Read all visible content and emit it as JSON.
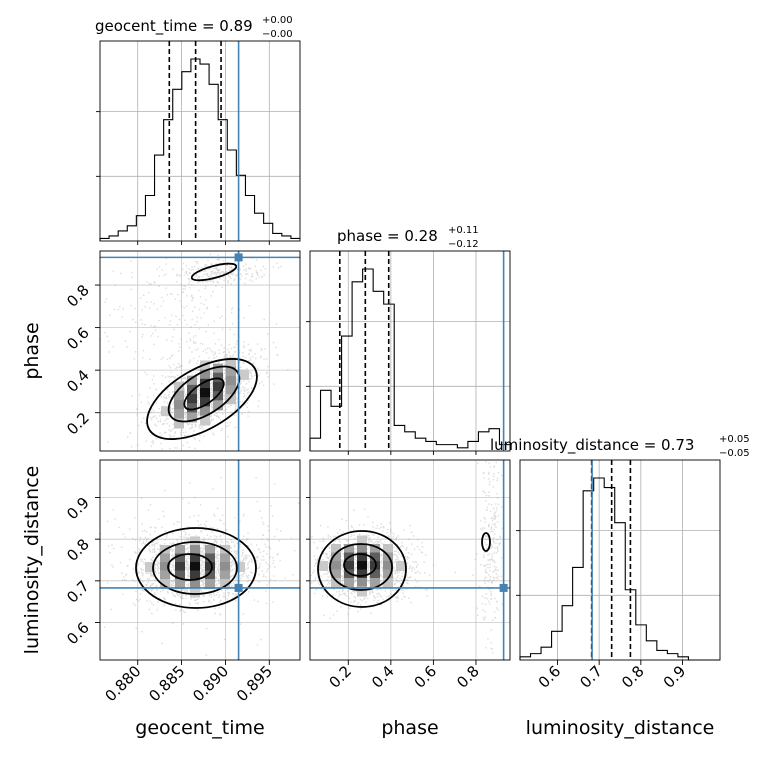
{
  "chart_data": {
    "type": "corner",
    "truths": {
      "geocent_time": 0.8915,
      "phase": 0.93,
      "luminosity_distance": 0.683
    },
    "params": [
      {
        "name": "geocent_time",
        "title_prefix": "geocent_time = ",
        "median": "0.89",
        "plus": "+0.00",
        "minus": "−0.00",
        "range": [
          0.8757,
          0.8985
        ],
        "ticks": [
          0.88,
          0.885,
          0.89,
          0.895
        ],
        "tick_labels": [
          "0.880",
          "0.885",
          "0.890",
          "0.895"
        ],
        "quantiles": [
          0.8836,
          0.8866,
          0.8895
        ],
        "hist": [
          1,
          2,
          4,
          6,
          10,
          18,
          34,
          48,
          60,
          67,
          72,
          70,
          62,
          48,
          36,
          26,
          18,
          11,
          7,
          3,
          2,
          1
        ]
      },
      {
        "name": "phase",
        "title_prefix": "phase = ",
        "median": "0.28",
        "plus": "+0.11",
        "minus": "−0.12",
        "range": [
          0.02,
          0.96
        ],
        "ticks": [
          0.2,
          0.4,
          0.6,
          0.8
        ],
        "tick_labels": [
          "0.2",
          "0.4",
          "0.6",
          "0.8"
        ],
        "quantiles": [
          0.16,
          0.28,
          0.39
        ],
        "hist": [
          4,
          19,
          14,
          36,
          53,
          57,
          50,
          46,
          8,
          6,
          4,
          3,
          2,
          2,
          1,
          3,
          6,
          7,
          2
        ]
      },
      {
        "name": "luminosity_distance",
        "title_prefix": "luminosity_distance = ",
        "median": "0.73",
        "plus": "+0.05",
        "minus": "−0.05",
        "range": [
          0.51,
          0.99
        ],
        "ticks": [
          0.6,
          0.7,
          0.8,
          0.9
        ],
        "tick_labels": [
          "0.6",
          "0.7",
          "0.8",
          "0.9"
        ],
        "quantiles": [
          0.682,
          0.73,
          0.775
        ],
        "hist": [
          1,
          2,
          4,
          9,
          17,
          29,
          53,
          57,
          54,
          43,
          22,
          11,
          6,
          3,
          2,
          1,
          0,
          0,
          0
        ]
      }
    ]
  }
}
